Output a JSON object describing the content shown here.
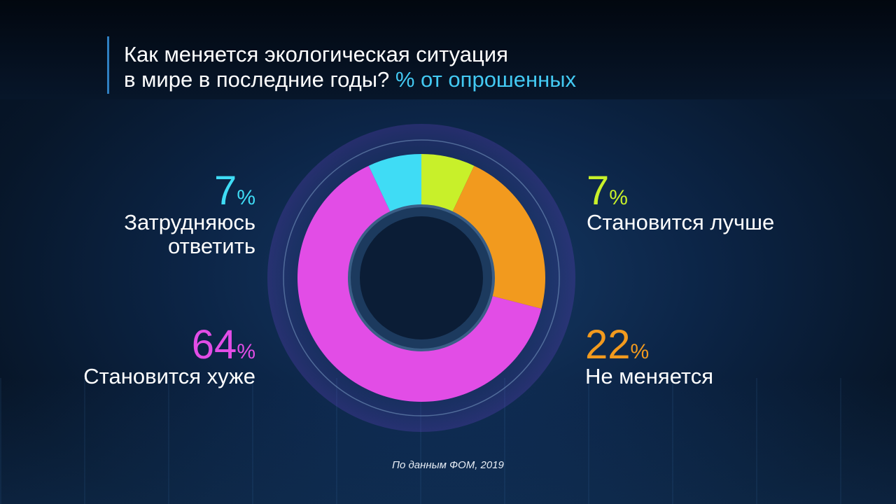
{
  "title": {
    "line1": "Как меняется экологическая ситуация",
    "line2": "в мире в последние годы?",
    "accent": "% от опрошенных"
  },
  "source": "По данным ФОМ, 2019",
  "chart_data": {
    "type": "pie",
    "unit": "%",
    "slices": [
      {
        "label": "Становится лучше",
        "value": 7,
        "color": "#c8f02a",
        "side": "right",
        "label_lines": [
          "Становится лучше"
        ]
      },
      {
        "label": "Не меняется",
        "value": 22,
        "color": "#f29a1e",
        "side": "right",
        "label_lines": [
          "Не меняется"
        ]
      },
      {
        "label": "Становится хуже",
        "value": 64,
        "color": "#e24de6",
        "side": "left",
        "label_lines": [
          "Становится хуже"
        ]
      },
      {
        "label": "Затрудняюсь ответить",
        "value": 7,
        "color": "#3fdcf5",
        "side": "left",
        "label_lines": [
          "Затрудняюсь",
          "ответить"
        ]
      }
    ]
  }
}
